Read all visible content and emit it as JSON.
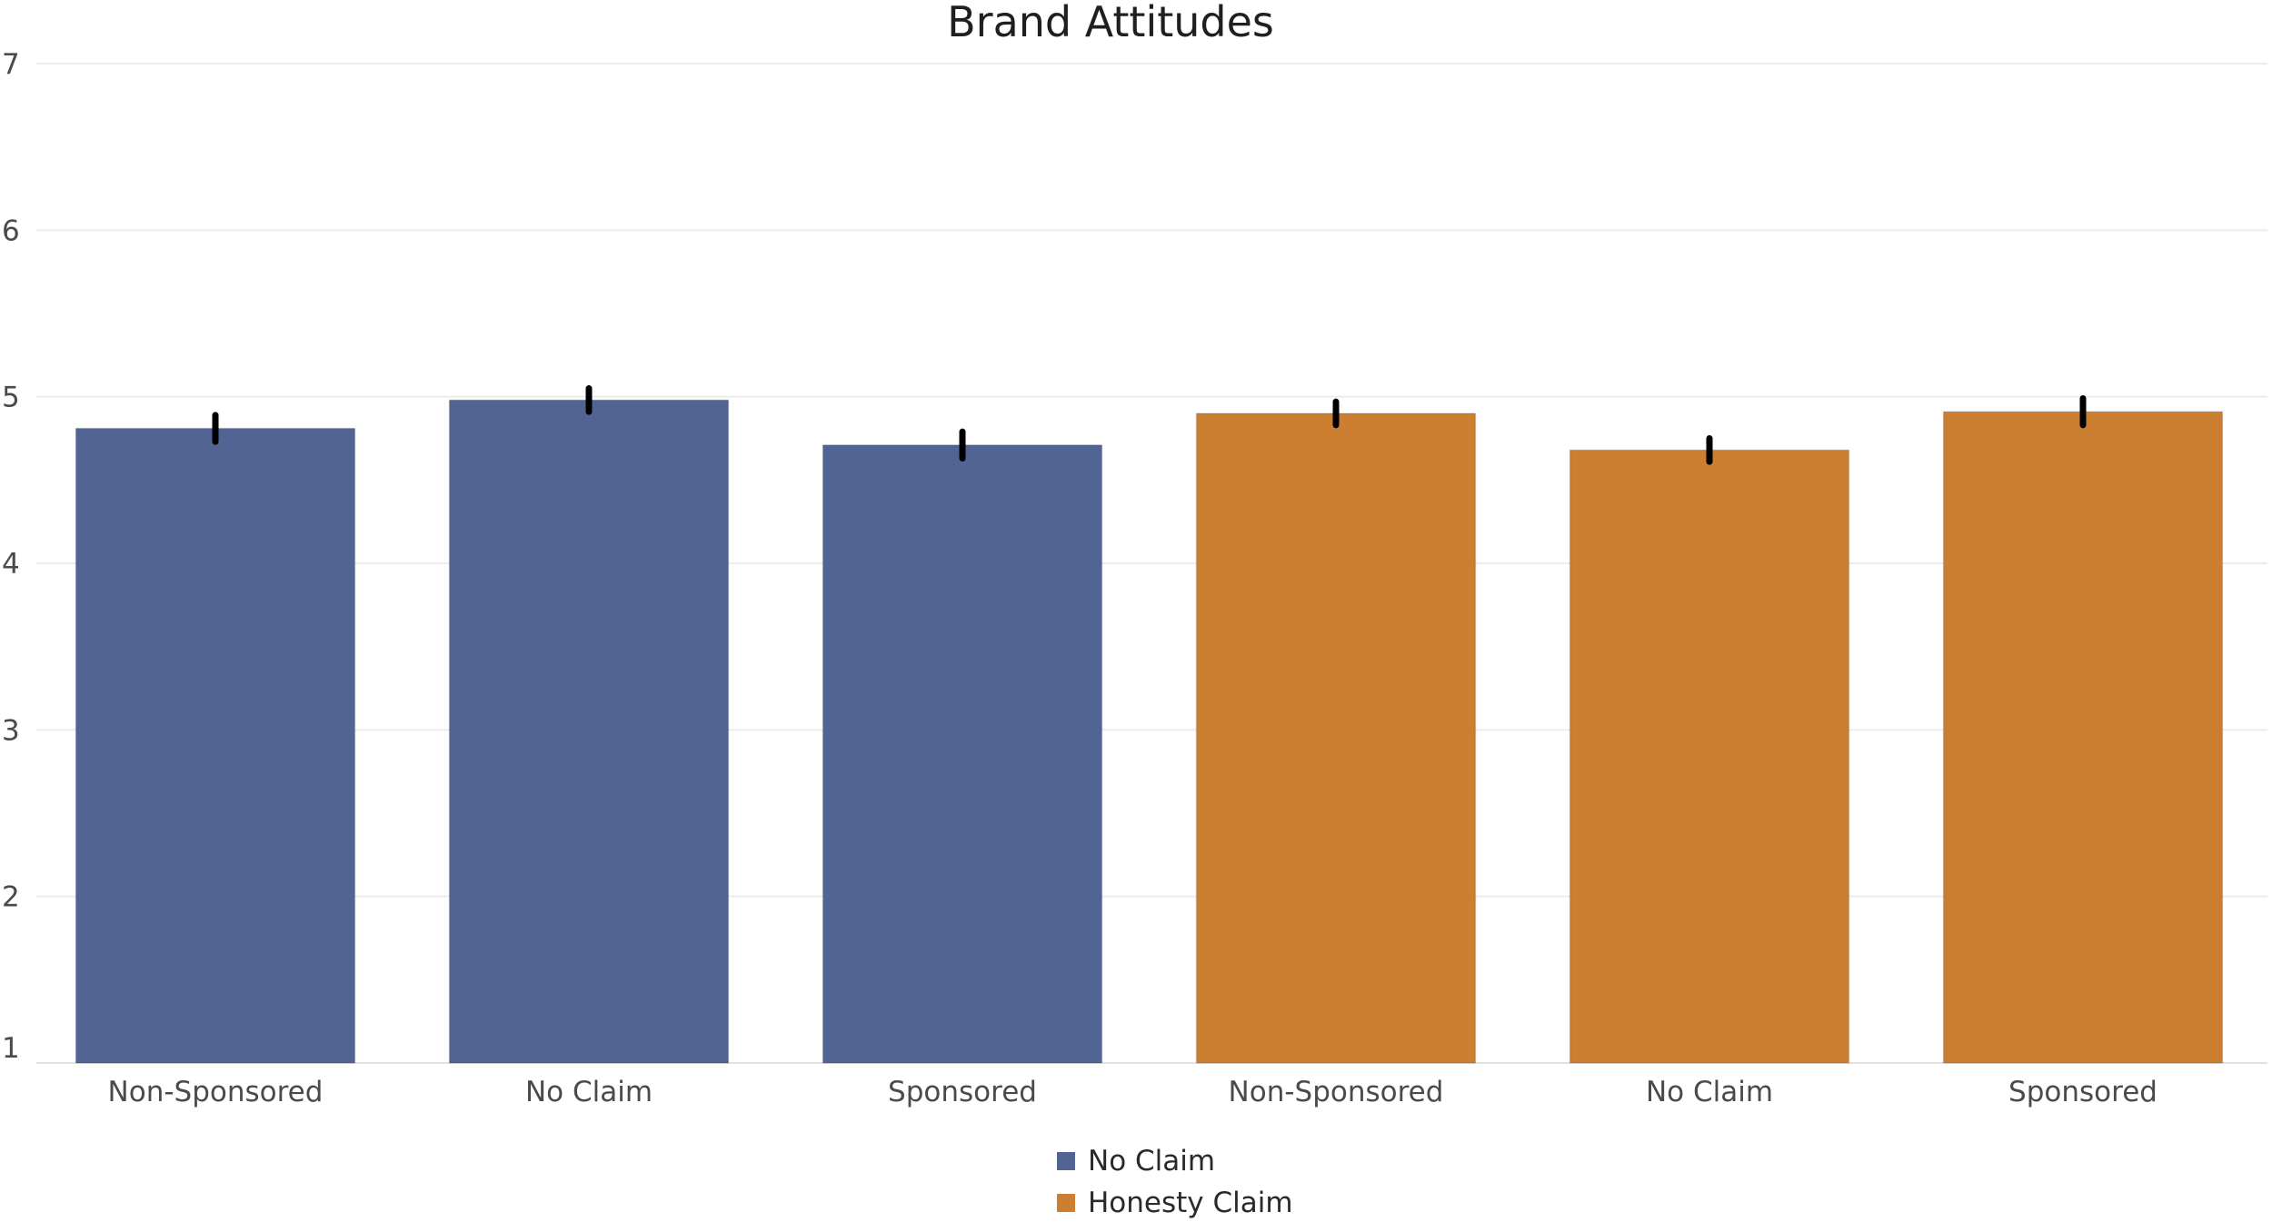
{
  "chart_data": {
    "type": "bar",
    "title": "Brand Attitudes",
    "xlabel": "",
    "ylabel": "",
    "ylim": [
      1,
      7
    ],
    "yticks": [
      1,
      2,
      3,
      4,
      5,
      6,
      7
    ],
    "grid": true,
    "legend_position": "bottom-center",
    "categories": [
      "Non-Sponsored",
      "No Claim",
      "Sponsored",
      "Non-Sponsored",
      "No Claim",
      "Sponsored"
    ],
    "values": [
      4.81,
      4.98,
      4.71,
      4.9,
      4.68,
      4.91
    ],
    "error": [
      0.08,
      0.07,
      0.08,
      0.07,
      0.07,
      0.08
    ],
    "bar_groups": [
      "No Claim",
      "No Claim",
      "No Claim",
      "Honesty Claim",
      "Honesty Claim",
      "Honesty Claim"
    ],
    "legend": [
      {
        "name": "No Claim",
        "color": "#516494"
      },
      {
        "name": "Honesty Claim",
        "color": "#cd7f31"
      }
    ]
  }
}
